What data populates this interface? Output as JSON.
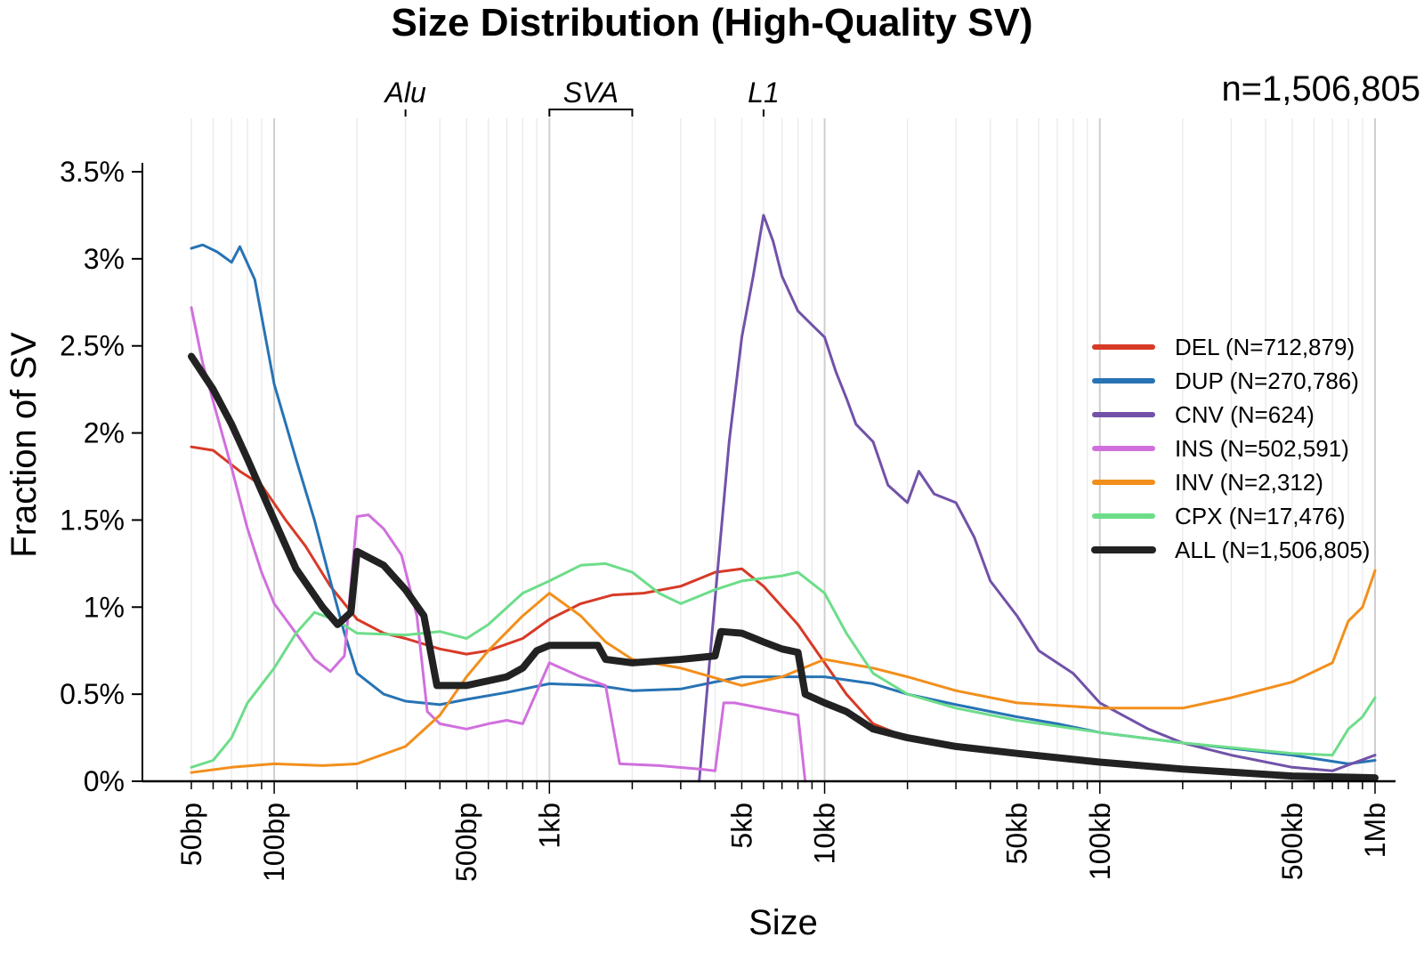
{
  "chart_data": {
    "type": "line",
    "title": "Size Distribution (High-Quality SV)",
    "xlabel": "Size",
    "ylabel": "Fraction of SV",
    "x_scale": "log10",
    "xlim": [
      45,
      1050000
    ],
    "ylim": [
      0,
      3.75
    ],
    "x_ticks": [
      {
        "value": 50,
        "label": "50bp"
      },
      {
        "value": 100,
        "label": "100bp"
      },
      {
        "value": 500,
        "label": "500bp"
      },
      {
        "value": 1000,
        "label": "1kb"
      },
      {
        "value": 5000,
        "label": "5kb"
      },
      {
        "value": 10000,
        "label": "10kb"
      },
      {
        "value": 50000,
        "label": "50kb"
      },
      {
        "value": 100000,
        "label": "100kb"
      },
      {
        "value": 500000,
        "label": "500kb"
      },
      {
        "value": 1000000,
        "label": "1Mb"
      }
    ],
    "y_ticks": [
      {
        "value": 0,
        "label": "0%"
      },
      {
        "value": 0.5,
        "label": "0.5%"
      },
      {
        "value": 1,
        "label": "1%"
      },
      {
        "value": 1.5,
        "label": "1.5%"
      },
      {
        "value": 2,
        "label": "2%"
      },
      {
        "value": 2.5,
        "label": "2.5%"
      },
      {
        "value": 3,
        "label": "3%"
      },
      {
        "value": 3.5,
        "label": "3.5%"
      }
    ],
    "sample_size_label": "n=1,506,805",
    "annotations": [
      {
        "label": "Alu",
        "x": 300
      },
      {
        "label": "SVA",
        "x_range": [
          1000,
          2000
        ]
      },
      {
        "label": "L1",
        "x": 6000
      }
    ],
    "legend_position": "right",
    "series": [
      {
        "name": "DEL",
        "legend": "DEL (N=712,879)",
        "color": "#D73A27",
        "points": [
          [
            50,
            1.92
          ],
          [
            60,
            1.9
          ],
          [
            75,
            1.78
          ],
          [
            90,
            1.7
          ],
          [
            110,
            1.5
          ],
          [
            130,
            1.35
          ],
          [
            160,
            1.12
          ],
          [
            200,
            0.93
          ],
          [
            250,
            0.85
          ],
          [
            300,
            0.82
          ],
          [
            400,
            0.76
          ],
          [
            500,
            0.73
          ],
          [
            600,
            0.75
          ],
          [
            800,
            0.82
          ],
          [
            1000,
            0.93
          ],
          [
            1300,
            1.02
          ],
          [
            1700,
            1.07
          ],
          [
            2200,
            1.08
          ],
          [
            3000,
            1.12
          ],
          [
            4000,
            1.2
          ],
          [
            5000,
            1.22
          ],
          [
            6000,
            1.12
          ],
          [
            8000,
            0.9
          ],
          [
            10000,
            0.68
          ],
          [
            12000,
            0.5
          ],
          [
            15000,
            0.33
          ],
          [
            20000,
            0.25
          ],
          [
            30000,
            0.2
          ],
          [
            50000,
            0.16
          ],
          [
            100000,
            0.11
          ],
          [
            200000,
            0.07
          ],
          [
            400000,
            0.04
          ],
          [
            700000,
            0.03
          ],
          [
            1000000,
            0.02
          ]
        ]
      },
      {
        "name": "DUP",
        "legend": "DUP (N=270,786)",
        "color": "#2773B4",
        "points": [
          [
            50,
            3.06
          ],
          [
            55,
            3.08
          ],
          [
            62,
            3.04
          ],
          [
            70,
            2.98
          ],
          [
            75,
            3.07
          ],
          [
            85,
            2.88
          ],
          [
            100,
            2.28
          ],
          [
            120,
            1.85
          ],
          [
            140,
            1.5
          ],
          [
            160,
            1.15
          ],
          [
            180,
            0.85
          ],
          [
            200,
            0.62
          ],
          [
            250,
            0.5
          ],
          [
            300,
            0.46
          ],
          [
            400,
            0.44
          ],
          [
            500,
            0.47
          ],
          [
            700,
            0.51
          ],
          [
            1000,
            0.56
          ],
          [
            1500,
            0.55
          ],
          [
            2000,
            0.52
          ],
          [
            3000,
            0.53
          ],
          [
            4000,
            0.57
          ],
          [
            5000,
            0.6
          ],
          [
            7000,
            0.6
          ],
          [
            10000,
            0.6
          ],
          [
            15000,
            0.56
          ],
          [
            20000,
            0.5
          ],
          [
            30000,
            0.44
          ],
          [
            50000,
            0.37
          ],
          [
            70000,
            0.33
          ],
          [
            100000,
            0.28
          ],
          [
            200000,
            0.22
          ],
          [
            500000,
            0.15
          ],
          [
            800000,
            0.1
          ],
          [
            1000000,
            0.12
          ]
        ]
      },
      {
        "name": "CNV",
        "legend": "CNV (N=624)",
        "color": "#7152A8",
        "points": [
          [
            3500,
            0.0
          ],
          [
            4000,
            1.05
          ],
          [
            4500,
            1.95
          ],
          [
            5000,
            2.55
          ],
          [
            5500,
            2.9
          ],
          [
            6000,
            3.25
          ],
          [
            6500,
            3.1
          ],
          [
            7000,
            2.9
          ],
          [
            8000,
            2.7
          ],
          [
            9000,
            2.62
          ],
          [
            10000,
            2.55
          ],
          [
            11000,
            2.35
          ],
          [
            12000,
            2.2
          ],
          [
            13000,
            2.05
          ],
          [
            15000,
            1.95
          ],
          [
            17000,
            1.7
          ],
          [
            20000,
            1.6
          ],
          [
            22000,
            1.78
          ],
          [
            25000,
            1.65
          ],
          [
            30000,
            1.6
          ],
          [
            35000,
            1.4
          ],
          [
            40000,
            1.15
          ],
          [
            50000,
            0.95
          ],
          [
            60000,
            0.75
          ],
          [
            80000,
            0.62
          ],
          [
            100000,
            0.45
          ],
          [
            150000,
            0.3
          ],
          [
            200000,
            0.22
          ],
          [
            300000,
            0.15
          ],
          [
            500000,
            0.08
          ],
          [
            700000,
            0.06
          ],
          [
            1000000,
            0.15
          ]
        ]
      },
      {
        "name": "INS",
        "legend": "INS (N=502,591)",
        "color": "#D070DD",
        "points": [
          [
            50,
            2.72
          ],
          [
            55,
            2.4
          ],
          [
            62,
            2.1
          ],
          [
            70,
            1.8
          ],
          [
            80,
            1.45
          ],
          [
            90,
            1.2
          ],
          [
            100,
            1.02
          ],
          [
            120,
            0.85
          ],
          [
            140,
            0.7
          ],
          [
            160,
            0.63
          ],
          [
            180,
            0.72
          ],
          [
            200,
            1.52
          ],
          [
            220,
            1.53
          ],
          [
            250,
            1.45
          ],
          [
            290,
            1.3
          ],
          [
            330,
            0.95
          ],
          [
            360,
            0.4
          ],
          [
            400,
            0.33
          ],
          [
            500,
            0.3
          ],
          [
            600,
            0.33
          ],
          [
            700,
            0.35
          ],
          [
            800,
            0.33
          ],
          [
            1000,
            0.68
          ],
          [
            1300,
            0.6
          ],
          [
            1600,
            0.55
          ],
          [
            1800,
            0.1
          ],
          [
            2500,
            0.09
          ],
          [
            3500,
            0.07
          ],
          [
            4000,
            0.06
          ],
          [
            4300,
            0.45
          ],
          [
            4700,
            0.45
          ],
          [
            8000,
            0.38
          ],
          [
            8500,
            0.0
          ]
        ]
      },
      {
        "name": "INV",
        "legend": "INV (N=2,312)",
        "color": "#F28F1C",
        "points": [
          [
            50,
            0.05
          ],
          [
            70,
            0.08
          ],
          [
            100,
            0.1
          ],
          [
            150,
            0.09
          ],
          [
            200,
            0.1
          ],
          [
            300,
            0.2
          ],
          [
            400,
            0.38
          ],
          [
            500,
            0.6
          ],
          [
            600,
            0.75
          ],
          [
            800,
            0.95
          ],
          [
            1000,
            1.08
          ],
          [
            1300,
            0.95
          ],
          [
            1600,
            0.8
          ],
          [
            2000,
            0.7
          ],
          [
            3000,
            0.65
          ],
          [
            5000,
            0.55
          ],
          [
            7000,
            0.6
          ],
          [
            10000,
            0.7
          ],
          [
            15000,
            0.65
          ],
          [
            20000,
            0.6
          ],
          [
            30000,
            0.52
          ],
          [
            50000,
            0.45
          ],
          [
            100000,
            0.42
          ],
          [
            200000,
            0.42
          ],
          [
            300000,
            0.48
          ],
          [
            500000,
            0.57
          ],
          [
            700000,
            0.68
          ],
          [
            800000,
            0.92
          ],
          [
            900000,
            1.0
          ],
          [
            1000000,
            1.21
          ]
        ]
      },
      {
        "name": "CPX",
        "legend": "CPX (N=17,476)",
        "color": "#6DDD8A",
        "points": [
          [
            50,
            0.08
          ],
          [
            60,
            0.12
          ],
          [
            70,
            0.25
          ],
          [
            80,
            0.45
          ],
          [
            100,
            0.65
          ],
          [
            120,
            0.85
          ],
          [
            140,
            0.97
          ],
          [
            170,
            0.92
          ],
          [
            200,
            0.85
          ],
          [
            300,
            0.84
          ],
          [
            400,
            0.86
          ],
          [
            500,
            0.82
          ],
          [
            600,
            0.9
          ],
          [
            800,
            1.08
          ],
          [
            1000,
            1.15
          ],
          [
            1300,
            1.24
          ],
          [
            1600,
            1.25
          ],
          [
            2000,
            1.2
          ],
          [
            2500,
            1.08
          ],
          [
            3000,
            1.02
          ],
          [
            4000,
            1.1
          ],
          [
            5000,
            1.15
          ],
          [
            7000,
            1.18
          ],
          [
            8000,
            1.2
          ],
          [
            10000,
            1.08
          ],
          [
            12000,
            0.85
          ],
          [
            15000,
            0.62
          ],
          [
            20000,
            0.5
          ],
          [
            30000,
            0.42
          ],
          [
            50000,
            0.35
          ],
          [
            100000,
            0.28
          ],
          [
            200000,
            0.22
          ],
          [
            500000,
            0.16
          ],
          [
            700000,
            0.15
          ],
          [
            800000,
            0.3
          ],
          [
            900000,
            0.37
          ],
          [
            1000000,
            0.48
          ]
        ]
      },
      {
        "name": "ALL",
        "legend": "ALL (N=1,506,805)",
        "color": "#222222",
        "points": [
          [
            50,
            2.44
          ],
          [
            60,
            2.25
          ],
          [
            70,
            2.05
          ],
          [
            80,
            1.85
          ],
          [
            100,
            1.5
          ],
          [
            120,
            1.22
          ],
          [
            150,
            1.0
          ],
          [
            170,
            0.9
          ],
          [
            190,
            0.97
          ],
          [
            200,
            1.32
          ],
          [
            250,
            1.24
          ],
          [
            300,
            1.1
          ],
          [
            350,
            0.95
          ],
          [
            390,
            0.55
          ],
          [
            500,
            0.55
          ],
          [
            700,
            0.6
          ],
          [
            800,
            0.65
          ],
          [
            900,
            0.75
          ],
          [
            1000,
            0.78
          ],
          [
            1500,
            0.78
          ],
          [
            1600,
            0.7
          ],
          [
            2000,
            0.68
          ],
          [
            3000,
            0.7
          ],
          [
            4000,
            0.72
          ],
          [
            4200,
            0.86
          ],
          [
            5000,
            0.85
          ],
          [
            6000,
            0.8
          ],
          [
            7000,
            0.76
          ],
          [
            8000,
            0.74
          ],
          [
            8500,
            0.5
          ],
          [
            10000,
            0.45
          ],
          [
            12000,
            0.4
          ],
          [
            15000,
            0.3
          ],
          [
            20000,
            0.25
          ],
          [
            30000,
            0.2
          ],
          [
            50000,
            0.16
          ],
          [
            100000,
            0.11
          ],
          [
            200000,
            0.07
          ],
          [
            500000,
            0.03
          ],
          [
            1000000,
            0.02
          ]
        ]
      }
    ]
  }
}
